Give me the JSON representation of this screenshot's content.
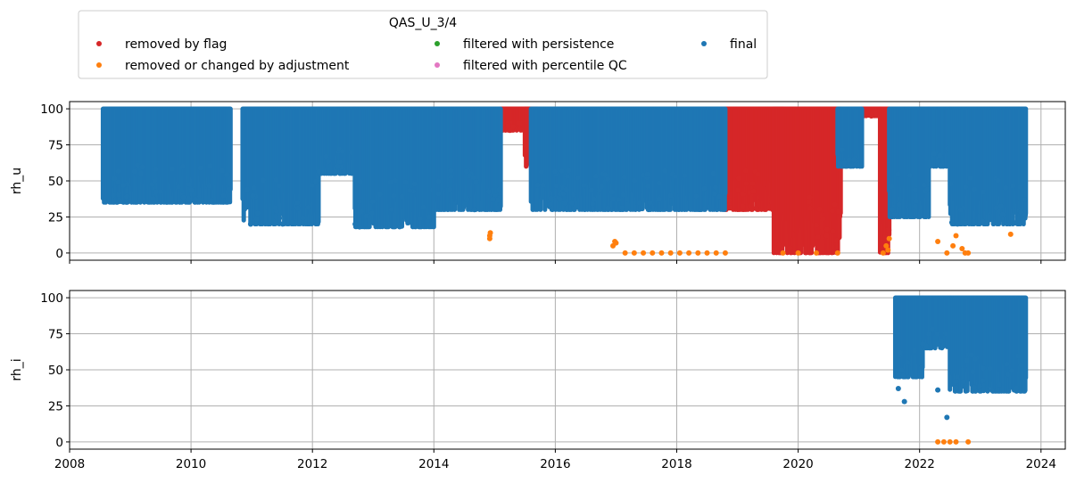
{
  "legend": {
    "title": "QAS_U_3/4",
    "entries": [
      {
        "label": "removed by flag",
        "color": "#d62728"
      },
      {
        "label": "removed or changed by adjustment",
        "color": "#ff7f0e"
      },
      {
        "label": "filtered with persistence",
        "color": "#2ca02c"
      },
      {
        "label": "filtered with percentile QC",
        "color": "#e377c2"
      },
      {
        "label": "final",
        "color": "#1f77b4"
      }
    ]
  },
  "chart_data": [
    {
      "type": "scatter",
      "ylabel": "rh_u",
      "xlim": [
        2008,
        2024.4
      ],
      "ylim": [
        -5,
        105
      ],
      "xticks": [
        2008,
        2010,
        2012,
        2014,
        2016,
        2018,
        2020,
        2022,
        2024
      ],
      "xtick_labels_shown": false,
      "yticks": [
        0,
        25,
        50,
        75,
        100
      ],
      "grid": true,
      "series": [
        {
          "name": "final",
          "color": "#1f77b4",
          "segments": [
            {
              "x0": 2008.55,
              "x1": 2010.65,
              "ymin": 35,
              "ymax": 100
            },
            {
              "x0": 2010.85,
              "x1": 2012.1,
              "ymin": 20,
              "ymax": 100
            },
            {
              "x0": 2012.1,
              "x1": 2012.7,
              "ymin": 55,
              "ymax": 100
            },
            {
              "x0": 2012.7,
              "x1": 2014.0,
              "ymin": 18,
              "ymax": 100
            },
            {
              "x0": 2014.0,
              "x1": 2015.1,
              "ymin": 30,
              "ymax": 100
            },
            {
              "x0": 2015.6,
              "x1": 2018.8,
              "ymin": 30,
              "ymax": 100
            },
            {
              "x0": 2020.65,
              "x1": 2021.05,
              "ymin": 60,
              "ymax": 100
            },
            {
              "x0": 2021.5,
              "x1": 2022.15,
              "ymin": 25,
              "ymax": 100
            },
            {
              "x0": 2022.15,
              "x1": 2022.5,
              "ymin": 60,
              "ymax": 100
            },
            {
              "x0": 2022.5,
              "x1": 2023.75,
              "ymin": 20,
              "ymax": 100
            }
          ]
        },
        {
          "name": "removed by flag",
          "color": "#d62728",
          "segments": [
            {
              "x0": 2015.1,
              "x1": 2015.6,
              "ymin": 85,
              "ymax": 100
            },
            {
              "x0": 2015.5,
              "x1": 2015.7,
              "ymin": 60,
              "ymax": 100
            },
            {
              "x0": 2018.8,
              "x1": 2019.75,
              "ymin": 30,
              "ymax": 100
            },
            {
              "x0": 2019.6,
              "x1": 2020.7,
              "ymin": 0,
              "ymax": 100
            },
            {
              "x0": 2021.05,
              "x1": 2021.35,
              "ymin": 95,
              "ymax": 100
            },
            {
              "x0": 2021.35,
              "x1": 2021.5,
              "ymin": 0,
              "ymax": 100
            }
          ]
        },
        {
          "name": "removed or changed by adjustment",
          "color": "#ff7f0e",
          "points": [
            [
              2014.92,
              10
            ],
            [
              2014.92,
              12
            ],
            [
              2014.93,
              14
            ],
            [
              2016.95,
              5
            ],
            [
              2016.98,
              8
            ],
            [
              2017.0,
              7
            ],
            [
              2017.15,
              0
            ],
            [
              2017.3,
              0
            ],
            [
              2017.45,
              0
            ],
            [
              2017.6,
              0
            ],
            [
              2017.75,
              0
            ],
            [
              2017.9,
              0
            ],
            [
              2018.05,
              0
            ],
            [
              2018.2,
              0
            ],
            [
              2018.35,
              0
            ],
            [
              2018.5,
              0
            ],
            [
              2018.65,
              0
            ],
            [
              2018.8,
              0
            ],
            [
              2019.75,
              0
            ],
            [
              2020.0,
              0
            ],
            [
              2020.3,
              0
            ],
            [
              2020.65,
              0
            ],
            [
              2021.4,
              0
            ],
            [
              2021.45,
              5
            ],
            [
              2021.5,
              10
            ],
            [
              2021.48,
              2
            ],
            [
              2022.3,
              8
            ],
            [
              2022.45,
              0
            ],
            [
              2022.55,
              5
            ],
            [
              2022.6,
              12
            ],
            [
              2022.7,
              3
            ],
            [
              2022.75,
              0
            ],
            [
              2022.8,
              0
            ],
            [
              2023.5,
              13
            ]
          ]
        }
      ]
    },
    {
      "type": "scatter",
      "ylabel": "rh_i",
      "xlim": [
        2008,
        2024.4
      ],
      "ylim": [
        -5,
        105
      ],
      "xticks": [
        2008,
        2010,
        2012,
        2014,
        2016,
        2018,
        2020,
        2022,
        2024
      ],
      "xtick_labels_shown": true,
      "yticks": [
        0,
        25,
        50,
        75,
        100
      ],
      "grid": true,
      "series": [
        {
          "name": "final",
          "color": "#1f77b4",
          "segments": [
            {
              "x0": 2021.6,
              "x1": 2022.05,
              "ymin": 45,
              "ymax": 100
            },
            {
              "x0": 2022.05,
              "x1": 2022.5,
              "ymin": 65,
              "ymax": 100
            },
            {
              "x0": 2022.5,
              "x1": 2023.75,
              "ymin": 35,
              "ymax": 100
            }
          ],
          "points": [
            [
              2021.65,
              37
            ],
            [
              2021.75,
              28
            ],
            [
              2022.3,
              36
            ],
            [
              2022.45,
              17
            ],
            [
              2022.6,
              42
            ]
          ]
        },
        {
          "name": "removed or changed by adjustment",
          "color": "#ff7f0e",
          "points": [
            [
              2022.3,
              0
            ],
            [
              2022.4,
              0
            ],
            [
              2022.5,
              0
            ],
            [
              2022.6,
              0
            ],
            [
              2022.8,
              0
            ]
          ]
        }
      ]
    }
  ]
}
